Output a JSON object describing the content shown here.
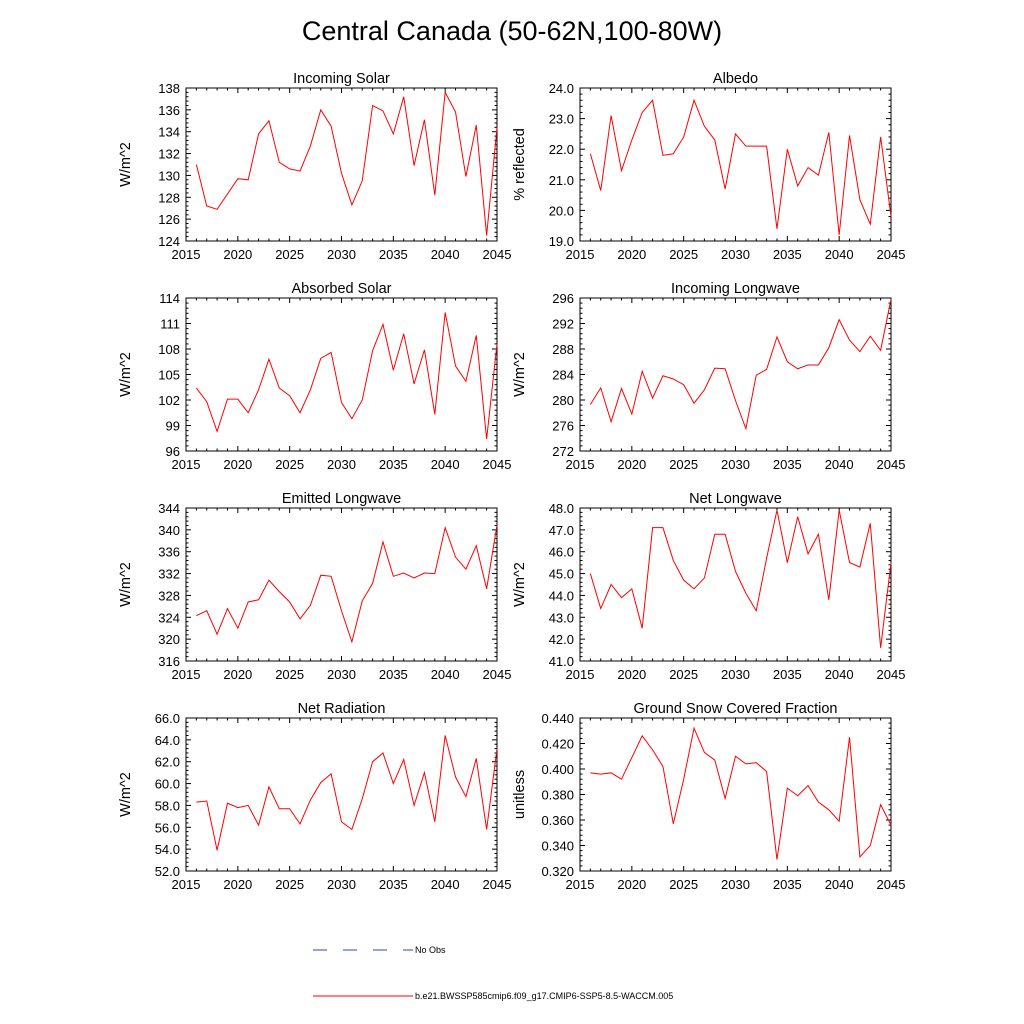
{
  "figure": {
    "title": "Central Canada (50-62N,100-80W)"
  },
  "legend": {
    "items": [
      {
        "label": "No Obs",
        "color": "#3344aa",
        "style": "dashed"
      },
      {
        "label": "b.e21.BWSSP585cmip6.f09_g17.CMIP6-SSP5-8.5-WACCM.005",
        "color": "#ff0000",
        "style": "solid"
      }
    ]
  },
  "chart_data": [
    {
      "type": "line",
      "title": "Incoming Solar",
      "xlabel": "",
      "ylabel": "W/m^2",
      "xlim": [
        2015,
        2045
      ],
      "ylim": [
        124,
        138
      ],
      "xticks": [
        2015,
        2020,
        2025,
        2030,
        2035,
        2040,
        2045
      ],
      "xtick_labels": [
        "2015",
        "2020",
        "2025",
        "2030",
        "2035",
        "2040",
        "2045"
      ],
      "yticks": [
        124,
        126,
        128,
        130,
        132,
        134,
        136,
        138
      ],
      "ytick_labels": [
        "124",
        "126",
        "128",
        "130",
        "132",
        "134",
        "136",
        "138"
      ],
      "series": [
        {
          "name": "b.e21.BWSSP585cmip6.f09_g17.CMIP6-SSP5-8.5-WACCM.005",
          "color": "#ff0000",
          "x": [
            2016,
            2017,
            2018,
            2019,
            2020,
            2021,
            2022,
            2023,
            2024,
            2025,
            2026,
            2027,
            2028,
            2029,
            2030,
            2031,
            2032,
            2033,
            2034,
            2035,
            2036,
            2037,
            2038,
            2039,
            2040,
            2041,
            2042,
            2043,
            2044,
            2045
          ],
          "values": [
            131.0,
            127.2,
            126.9,
            128.3,
            129.7,
            129.6,
            133.8,
            135.0,
            131.2,
            130.6,
            130.4,
            132.7,
            136.0,
            134.5,
            130.2,
            127.3,
            129.5,
            136.4,
            135.9,
            133.8,
            137.2,
            130.9,
            135.1,
            128.2,
            137.6,
            135.8,
            129.9,
            134.6,
            124.5,
            134.4
          ]
        }
      ]
    },
    {
      "type": "line",
      "title": "Albedo",
      "xlabel": "",
      "ylabel": "% reflected",
      "xlim": [
        2015,
        2045
      ],
      "ylim": [
        19.0,
        24.0
      ],
      "xticks": [
        2015,
        2020,
        2025,
        2030,
        2035,
        2040,
        2045
      ],
      "xtick_labels": [
        "2015",
        "2020",
        "2025",
        "2030",
        "2035",
        "2040",
        "2045"
      ],
      "yticks": [
        19.0,
        20.0,
        21.0,
        22.0,
        23.0,
        24.0
      ],
      "ytick_labels": [
        "19.0",
        "20.0",
        "21.0",
        "22.0",
        "23.0",
        "24.0"
      ],
      "series": [
        {
          "name": "b.e21.BWSSP585cmip6.f09_g17.CMIP6-SSP5-8.5-WACCM.005",
          "color": "#ff0000",
          "x": [
            2016,
            2017,
            2018,
            2019,
            2020,
            2021,
            2022,
            2023,
            2024,
            2025,
            2026,
            2027,
            2028,
            2029,
            2030,
            2031,
            2032,
            2033,
            2034,
            2035,
            2036,
            2037,
            2038,
            2039,
            2040,
            2041,
            2042,
            2043,
            2044,
            2045
          ],
          "values": [
            21.85,
            20.65,
            23.1,
            21.3,
            22.3,
            23.2,
            23.6,
            21.8,
            21.85,
            22.4,
            23.6,
            22.75,
            22.3,
            20.7,
            22.5,
            22.1,
            22.1,
            22.1,
            19.4,
            22.0,
            20.8,
            21.4,
            21.15,
            22.55,
            19.2,
            22.45,
            20.35,
            19.55,
            22.4,
            19.8
          ]
        }
      ]
    },
    {
      "type": "line",
      "title": "Absorbed Solar",
      "xlabel": "",
      "ylabel": "W/m^2",
      "xlim": [
        2015,
        2045
      ],
      "ylim": [
        96,
        114
      ],
      "xticks": [
        2015,
        2020,
        2025,
        2030,
        2035,
        2040,
        2045
      ],
      "xtick_labels": [
        "2015",
        "2020",
        "2025",
        "2030",
        "2035",
        "2040",
        "2045"
      ],
      "yticks": [
        96,
        99,
        102,
        105,
        108,
        111,
        114
      ],
      "ytick_labels": [
        "96",
        "99",
        "102",
        "105",
        "108",
        "111",
        "114"
      ],
      "series": [
        {
          "name": "b.e21.BWSSP585cmip6.f09_g17.CMIP6-SSP5-8.5-WACCM.005",
          "color": "#ff0000",
          "x": [
            2016,
            2017,
            2018,
            2019,
            2020,
            2021,
            2022,
            2023,
            2024,
            2025,
            2026,
            2027,
            2028,
            2029,
            2030,
            2031,
            2032,
            2033,
            2034,
            2035,
            2036,
            2037,
            2038,
            2039,
            2040,
            2041,
            2042,
            2043,
            2044,
            2045
          ],
          "values": [
            103.4,
            101.8,
            98.3,
            102.1,
            102.1,
            100.5,
            103.2,
            106.8,
            103.4,
            102.5,
            100.5,
            103.2,
            106.9,
            107.6,
            101.7,
            99.8,
            102.0,
            107.8,
            110.9,
            105.5,
            109.8,
            103.9,
            107.9,
            100.3,
            112.3,
            106.0,
            104.2,
            109.6,
            97.4,
            108.6
          ]
        }
      ]
    },
    {
      "type": "line",
      "title": "Incoming Longwave",
      "xlabel": "",
      "ylabel": "W/m^2",
      "xlim": [
        2015,
        2045
      ],
      "ylim": [
        272,
        296
      ],
      "xticks": [
        2015,
        2020,
        2025,
        2030,
        2035,
        2040,
        2045
      ],
      "xtick_labels": [
        "2015",
        "2020",
        "2025",
        "2030",
        "2035",
        "2040",
        "2045"
      ],
      "yticks": [
        272,
        276,
        280,
        284,
        288,
        292,
        296
      ],
      "ytick_labels": [
        "272",
        "276",
        "280",
        "284",
        "288",
        "292",
        "296"
      ],
      "series": [
        {
          "name": "b.e21.BWSSP585cmip6.f09_g17.CMIP6-SSP5-8.5-WACCM.005",
          "color": "#ff0000",
          "x": [
            2016,
            2017,
            2018,
            2019,
            2020,
            2021,
            2022,
            2023,
            2024,
            2025,
            2026,
            2027,
            2028,
            2029,
            2030,
            2031,
            2032,
            2033,
            2034,
            2035,
            2036,
            2037,
            2038,
            2039,
            2040,
            2041,
            2042,
            2043,
            2044,
            2045
          ],
          "values": [
            279.3,
            281.9,
            276.6,
            281.8,
            277.8,
            284.5,
            280.3,
            283.8,
            283.3,
            282.4,
            279.5,
            281.6,
            285.0,
            284.9,
            279.9,
            275.5,
            283.9,
            284.8,
            289.9,
            286.0,
            284.9,
            285.5,
            285.5,
            288.2,
            292.6,
            289.4,
            287.6,
            290.0,
            287.8,
            295.8
          ]
        }
      ]
    },
    {
      "type": "line",
      "title": "Emitted Longwave",
      "xlabel": "",
      "ylabel": "W/m^2",
      "xlim": [
        2015,
        2045
      ],
      "ylim": [
        316,
        344
      ],
      "xticks": [
        2015,
        2020,
        2025,
        2030,
        2035,
        2040,
        2045
      ],
      "xtick_labels": [
        "2015",
        "2020",
        "2025",
        "2030",
        "2035",
        "2040",
        "2045"
      ],
      "yticks": [
        316,
        320,
        324,
        328,
        332,
        336,
        340,
        344
      ],
      "ytick_labels": [
        "316",
        "320",
        "324",
        "328",
        "332",
        "336",
        "340",
        "344"
      ],
      "series": [
        {
          "name": "b.e21.BWSSP585cmip6.f09_g17.CMIP6-SSP5-8.5-WACCM.005",
          "color": "#ff0000",
          "x": [
            2016,
            2017,
            2018,
            2019,
            2020,
            2021,
            2022,
            2023,
            2024,
            2025,
            2026,
            2027,
            2028,
            2029,
            2030,
            2031,
            2032,
            2033,
            2034,
            2035,
            2036,
            2037,
            2038,
            2039,
            2040,
            2041,
            2042,
            2043,
            2044,
            2045
          ],
          "values": [
            324.3,
            325.2,
            320.9,
            325.6,
            322.0,
            326.8,
            327.2,
            330.8,
            328.7,
            326.8,
            323.7,
            326.2,
            331.7,
            331.5,
            325.2,
            319.5,
            327.0,
            330.2,
            337.8,
            331.5,
            332.1,
            331.2,
            332.1,
            332.0,
            340.4,
            335.0,
            332.8,
            337.1,
            329.2,
            340.9
          ]
        }
      ]
    },
    {
      "type": "line",
      "title": "Net Longwave",
      "xlabel": "",
      "ylabel": "W/m^2",
      "xlim": [
        2015,
        2045
      ],
      "ylim": [
        41.0,
        48.0
      ],
      "xticks": [
        2015,
        2020,
        2025,
        2030,
        2035,
        2040,
        2045
      ],
      "xtick_labels": [
        "2015",
        "2020",
        "2025",
        "2030",
        "2035",
        "2040",
        "2045"
      ],
      "yticks": [
        41.0,
        42.0,
        43.0,
        44.0,
        45.0,
        46.0,
        47.0,
        48.0
      ],
      "ytick_labels": [
        "41.0",
        "42.0",
        "43.0",
        "44.0",
        "45.0",
        "46.0",
        "47.0",
        "48.0"
      ],
      "series": [
        {
          "name": "b.e21.BWSSP585cmip6.f09_g17.CMIP6-SSP5-8.5-WACCM.005",
          "color": "#ff0000",
          "x": [
            2016,
            2017,
            2018,
            2019,
            2020,
            2021,
            2022,
            2023,
            2024,
            2025,
            2026,
            2027,
            2028,
            2029,
            2030,
            2031,
            2032,
            2033,
            2034,
            2035,
            2036,
            2037,
            2038,
            2039,
            2040,
            2041,
            2042,
            2043,
            2044,
            2045
          ],
          "values": [
            45.0,
            43.4,
            44.5,
            43.9,
            44.3,
            42.5,
            47.1,
            47.1,
            45.6,
            44.7,
            44.3,
            44.8,
            46.8,
            46.8,
            45.1,
            44.1,
            43.3,
            45.7,
            47.9,
            45.5,
            47.6,
            45.9,
            46.8,
            43.8,
            47.9,
            45.5,
            45.3,
            47.3,
            41.6,
            45.5
          ]
        }
      ]
    },
    {
      "type": "line",
      "title": "Net Radiation",
      "xlabel": "",
      "ylabel": "W/m^2",
      "xlim": [
        2015,
        2045
      ],
      "ylim": [
        52.0,
        66.0
      ],
      "xticks": [
        2015,
        2020,
        2025,
        2030,
        2035,
        2040,
        2045
      ],
      "xtick_labels": [
        "2015",
        "2020",
        "2025",
        "2030",
        "2035",
        "2040",
        "2045"
      ],
      "yticks": [
        52.0,
        54.0,
        56.0,
        58.0,
        60.0,
        62.0,
        64.0,
        66.0
      ],
      "ytick_labels": [
        "52.0",
        "54.0",
        "56.0",
        "58.0",
        "60.0",
        "62.0",
        "64.0",
        "66.0"
      ],
      "series": [
        {
          "name": "b.e21.BWSSP585cmip6.f09_g17.CMIP6-SSP5-8.5-WACCM.005",
          "color": "#ff0000",
          "x": [
            2016,
            2017,
            2018,
            2019,
            2020,
            2021,
            2022,
            2023,
            2024,
            2025,
            2026,
            2027,
            2028,
            2029,
            2030,
            2031,
            2032,
            2033,
            2034,
            2035,
            2036,
            2037,
            2038,
            2039,
            2040,
            2041,
            2042,
            2043,
            2044,
            2045
          ],
          "values": [
            58.3,
            58.4,
            53.9,
            58.2,
            57.8,
            58.0,
            56.2,
            59.7,
            57.7,
            57.7,
            56.3,
            58.5,
            60.1,
            60.9,
            56.5,
            55.8,
            58.6,
            62.0,
            62.8,
            60.0,
            62.2,
            58.0,
            61.0,
            56.5,
            64.4,
            60.6,
            58.8,
            62.3,
            55.8,
            63.2
          ]
        }
      ]
    },
    {
      "type": "line",
      "title": "Ground Snow Covered Fraction",
      "xlabel": "",
      "ylabel": "unitless",
      "xlim": [
        2015,
        2045
      ],
      "ylim": [
        0.32,
        0.44
      ],
      "xticks": [
        2015,
        2020,
        2025,
        2030,
        2035,
        2040,
        2045
      ],
      "xtick_labels": [
        "2015",
        "2020",
        "2025",
        "2030",
        "2035",
        "2040",
        "2045"
      ],
      "yticks": [
        0.32,
        0.34,
        0.36,
        0.38,
        0.4,
        0.42,
        0.44
      ],
      "ytick_labels": [
        "0.320",
        "0.340",
        "0.360",
        "0.380",
        "0.400",
        "0.420",
        "0.440"
      ],
      "series": [
        {
          "name": "b.e21.BWSSP585cmip6.f09_g17.CMIP6-SSP5-8.5-WACCM.005",
          "color": "#ff0000",
          "x": [
            2016,
            2017,
            2018,
            2019,
            2020,
            2021,
            2022,
            2023,
            2024,
            2025,
            2026,
            2027,
            2028,
            2029,
            2030,
            2031,
            2032,
            2033,
            2034,
            2035,
            2036,
            2037,
            2038,
            2039,
            2040,
            2041,
            2042,
            2043,
            2044,
            2045
          ],
          "values": [
            0.397,
            0.396,
            0.397,
            0.392,
            0.409,
            0.426,
            0.415,
            0.402,
            0.357,
            0.392,
            0.432,
            0.413,
            0.407,
            0.377,
            0.41,
            0.404,
            0.405,
            0.398,
            0.329,
            0.385,
            0.379,
            0.387,
            0.374,
            0.368,
            0.359,
            0.425,
            0.331,
            0.34,
            0.372,
            0.356
          ]
        }
      ]
    }
  ]
}
